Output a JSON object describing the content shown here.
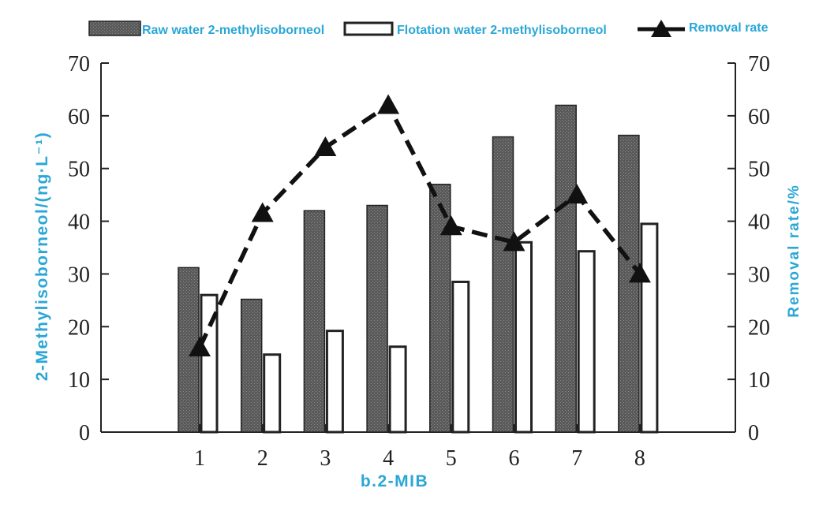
{
  "chart_data": {
    "type": "bar",
    "xlabel": "b.2-MIB",
    "ylabel_left": "2-Methylisoborneol/(ng·L⁻¹)",
    "ylabel_right": "Removal rate/%",
    "categories": [
      "1",
      "2",
      "3",
      "4",
      "5",
      "6",
      "7",
      "8"
    ],
    "ylim_left": [
      0,
      70
    ],
    "ylim_right": [
      0,
      70
    ],
    "yticks": [
      "0",
      "10",
      "20",
      "30",
      "40",
      "50",
      "60",
      "70"
    ],
    "series": [
      {
        "name": "Raw water 2-methylisoborneol",
        "kind": "bar",
        "axis": "left",
        "color": "#555555",
        "values": [
          31.2,
          25.2,
          42,
          43,
          47,
          56,
          62,
          56.3
        ]
      },
      {
        "name": "Flotation water 2-methylisoborneol",
        "kind": "bar",
        "axis": "left",
        "color": "#ffffff",
        "values": [
          26,
          14.7,
          19.2,
          16.2,
          28.5,
          36,
          34.3,
          39.5
        ]
      },
      {
        "name": "Removal rate",
        "kind": "line",
        "axis": "right",
        "color": "#111111",
        "values": [
          16,
          41.5,
          54,
          62,
          39,
          36,
          45,
          30
        ]
      }
    ],
    "legend_position": "top",
    "grid": false
  },
  "colors": {
    "label_blue": "#2aa7d6",
    "axis": "#222222"
  }
}
